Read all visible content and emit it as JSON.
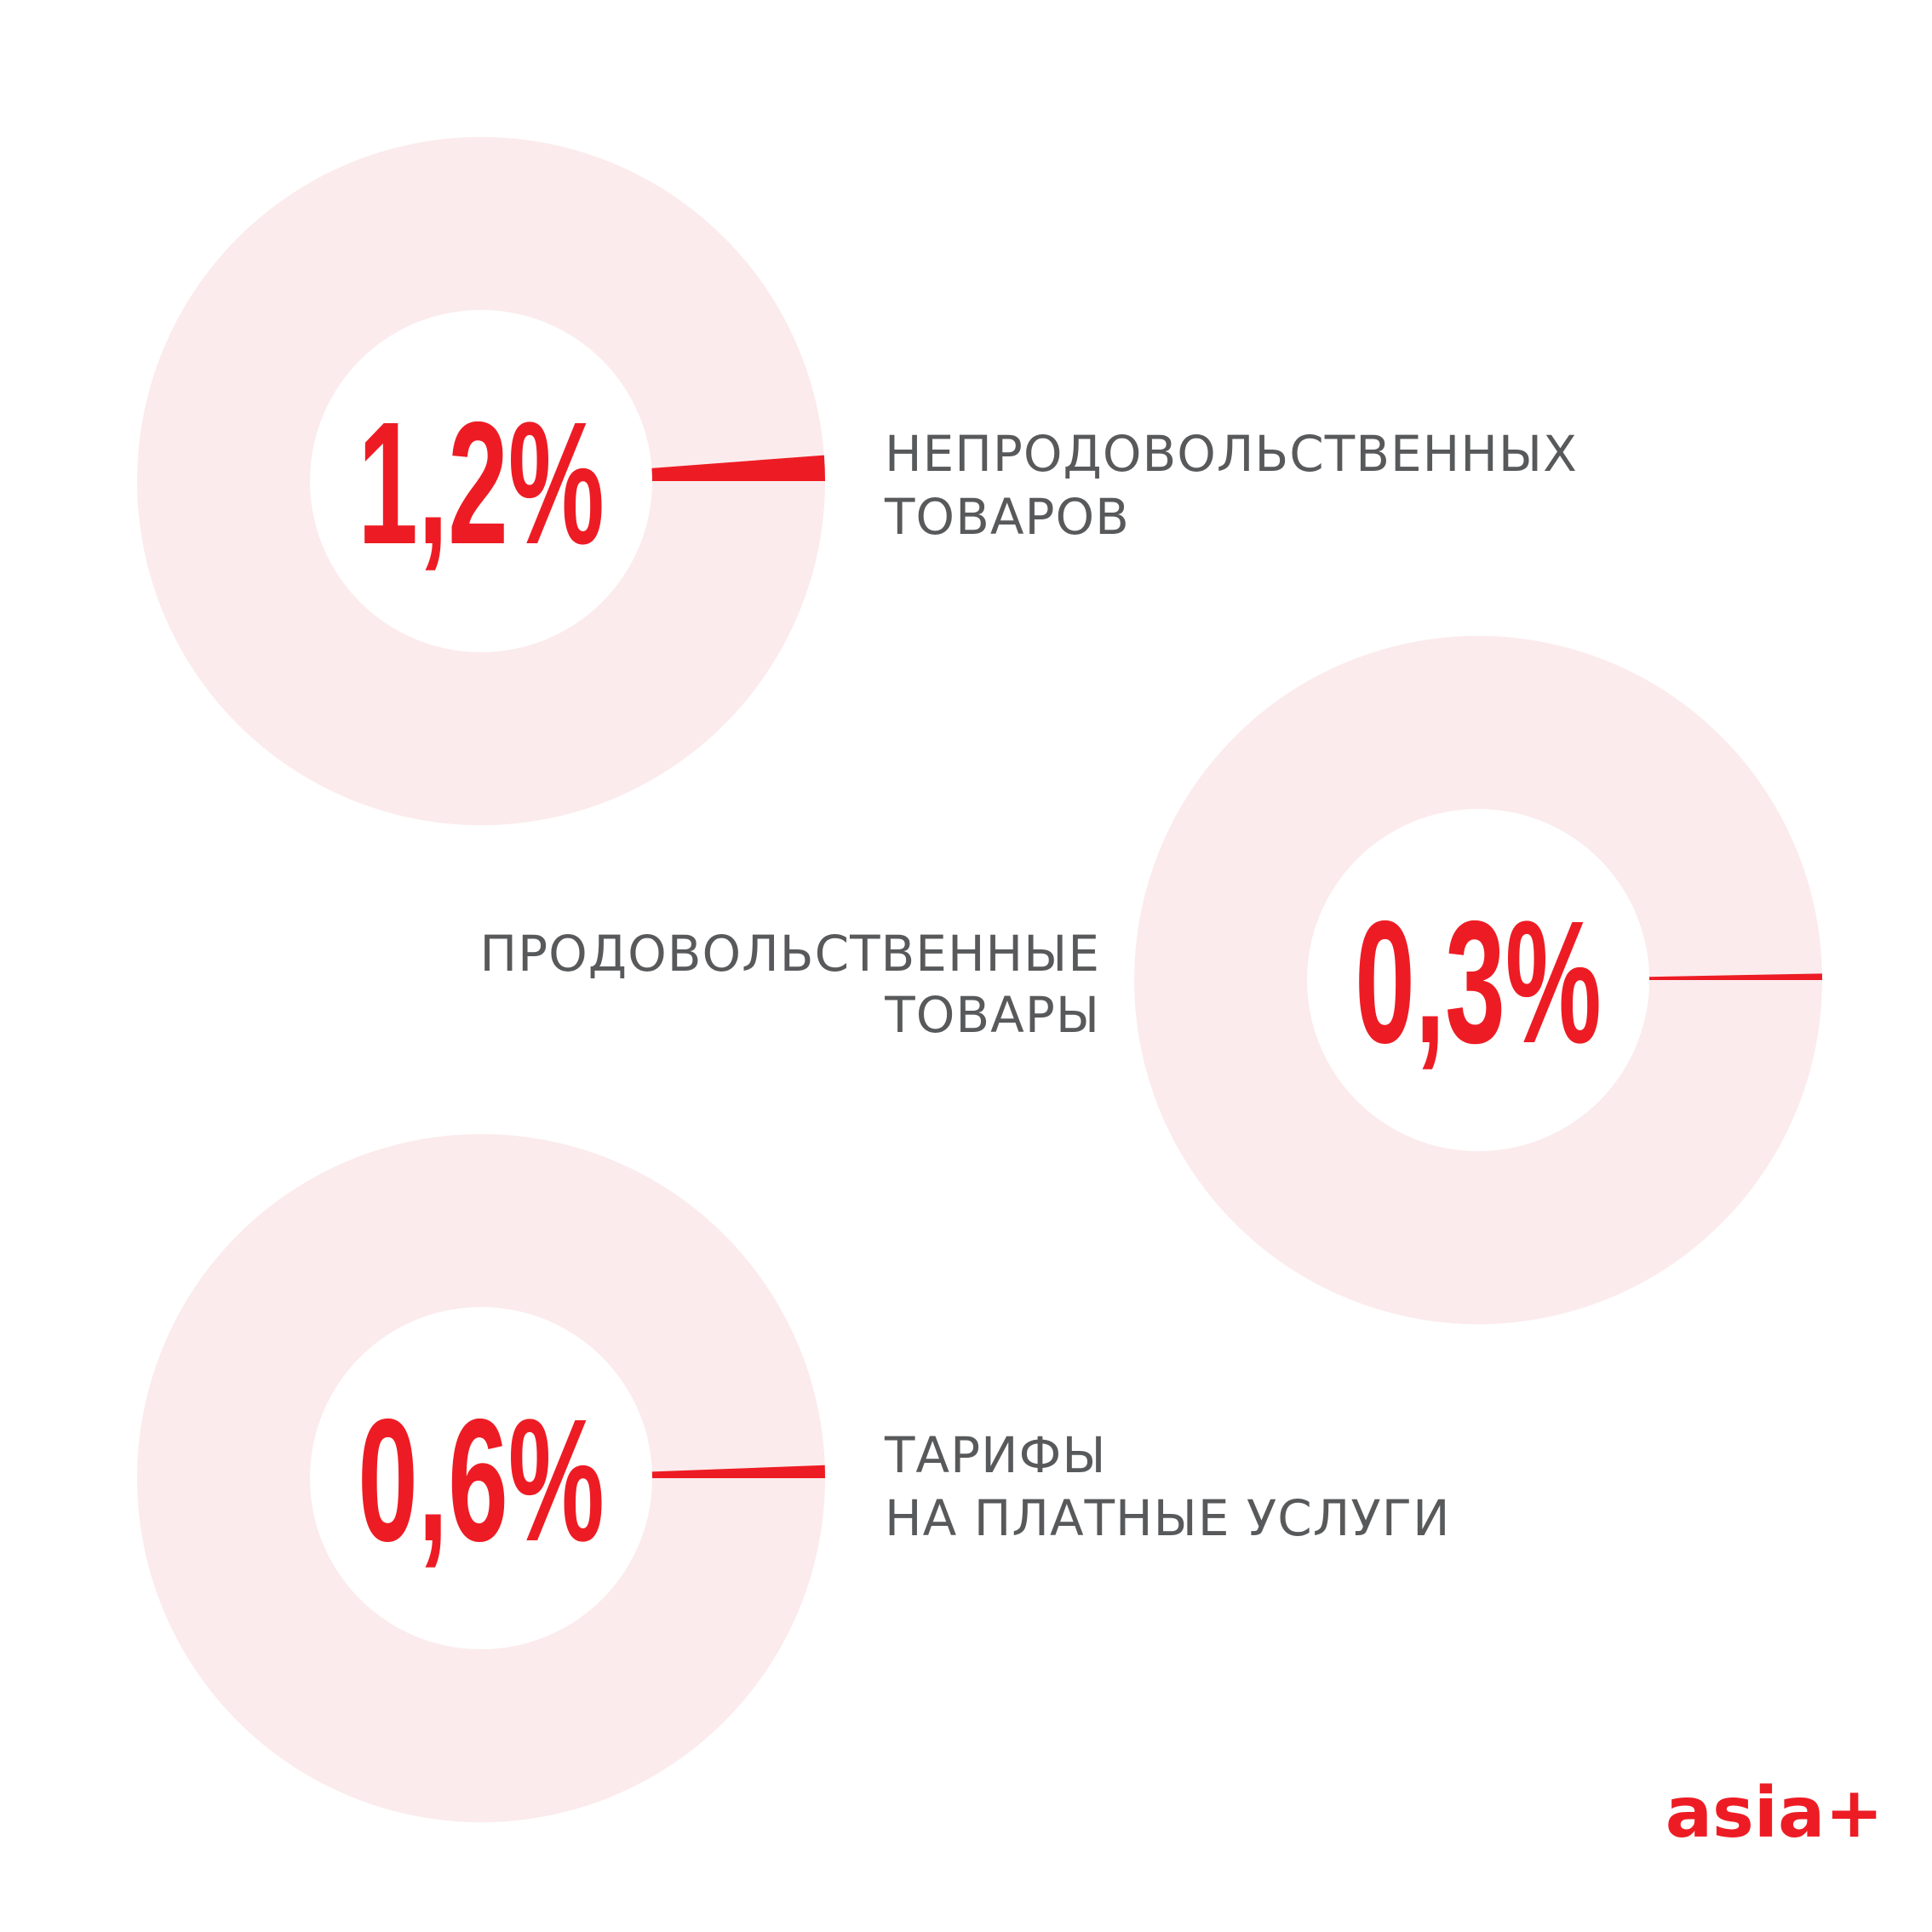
{
  "chart_data": [
    {
      "type": "pie",
      "value_percent": 1.2,
      "value_label": "1,2%",
      "label_lines": [
        "НЕПРОДОВОЛЬСТВЕННЫХ",
        "ТОВАРОВ"
      ]
    },
    {
      "type": "pie",
      "value_percent": 0.3,
      "value_label": "0,3%",
      "label_lines": [
        "ПРОДОВОЛЬСТВЕННЫЕ",
        "ТОВАРЫ"
      ]
    },
    {
      "type": "pie",
      "value_percent": 0.6,
      "value_label": "0,6%",
      "label_lines": [
        "ТАРИФЫ",
        "НА ПЛАТНЫЕ УСЛУГИ"
      ]
    }
  ],
  "colors": {
    "accent": "#ed1c24",
    "ring": "#fcebec",
    "text": "#58595b"
  },
  "logo": "asia+"
}
